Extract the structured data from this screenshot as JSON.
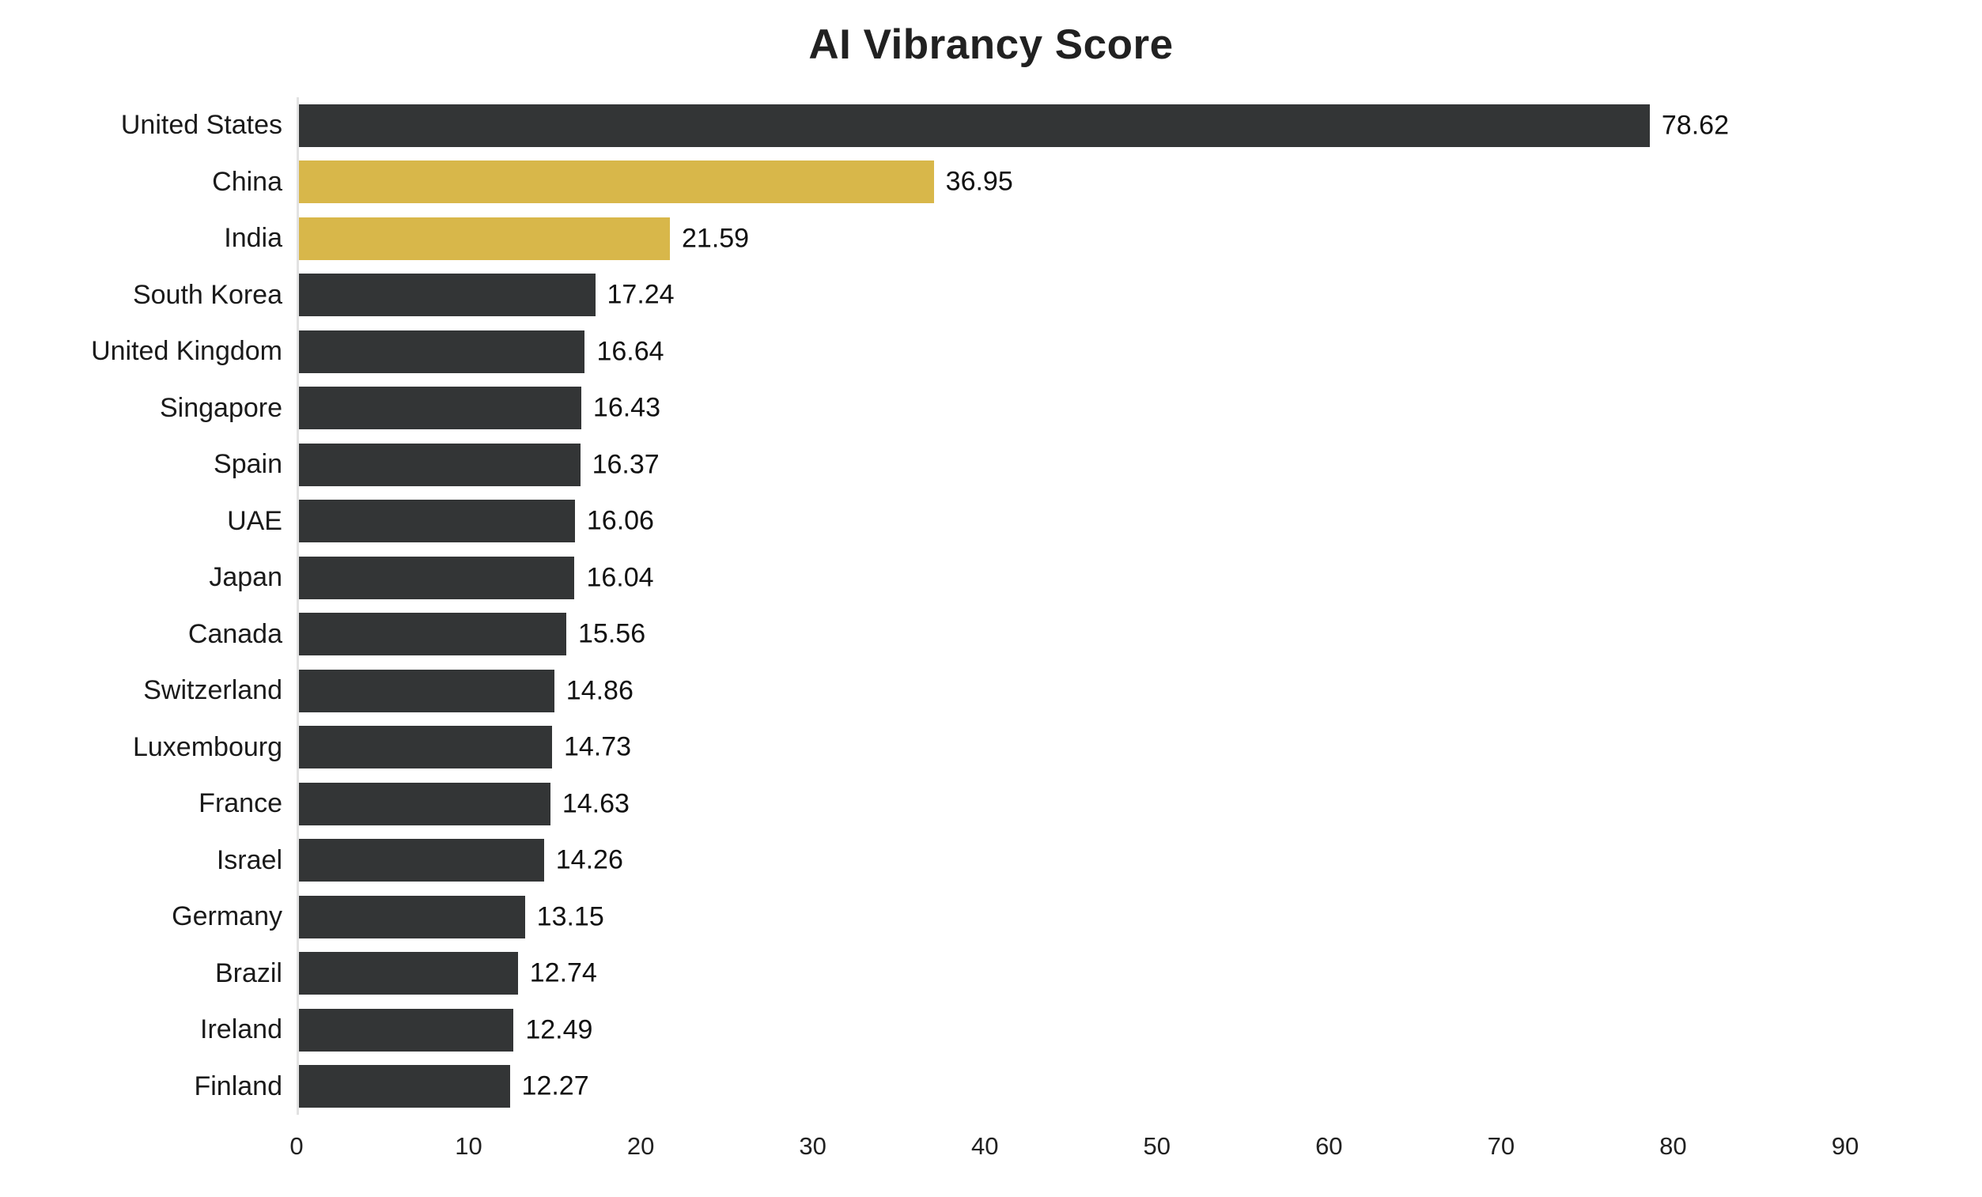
{
  "page": {
    "background": "#ffffff"
  },
  "chart_data": {
    "type": "bar",
    "orientation": "horizontal",
    "title": "AI Vibrancy Score",
    "categories": [
      "United States",
      "China",
      "India",
      "South Korea",
      "United Kingdom",
      "Singapore",
      "Spain",
      "UAE",
      "Japan",
      "Canada",
      "Switzerland",
      "Luxembourg",
      "France",
      "Israel",
      "Germany",
      "Brazil",
      "Ireland",
      "Finland"
    ],
    "values": [
      78.62,
      36.95,
      21.59,
      17.24,
      16.64,
      16.43,
      16.37,
      16.06,
      16.04,
      15.56,
      14.86,
      14.73,
      14.63,
      14.26,
      13.15,
      12.74,
      12.49,
      12.27
    ],
    "value_labels": [
      "78.62",
      "36.95",
      "21.59",
      "17.24",
      "16.64",
      "16.43",
      "16.37",
      "16.06",
      "16.04",
      "15.56",
      "14.86",
      "14.73",
      "14.63",
      "14.26",
      "13.15",
      "12.74",
      "12.49",
      "12.27"
    ],
    "highlighted_categories": [
      "China",
      "India"
    ],
    "x_ticks": [
      0,
      10,
      20,
      30,
      40,
      50,
      60,
      70,
      80,
      90
    ],
    "xlim": [
      0,
      94
    ],
    "xlabel": "",
    "ylabel": "",
    "grid": false,
    "legend": false,
    "colors": {
      "bar": "#333536",
      "highlight": "#d8b74a",
      "title_text": "#212121",
      "label_text": "#1a1a1a",
      "value_text": "#111111",
      "axis_line": "#e2e2e2",
      "tick_text": "#212121"
    }
  }
}
